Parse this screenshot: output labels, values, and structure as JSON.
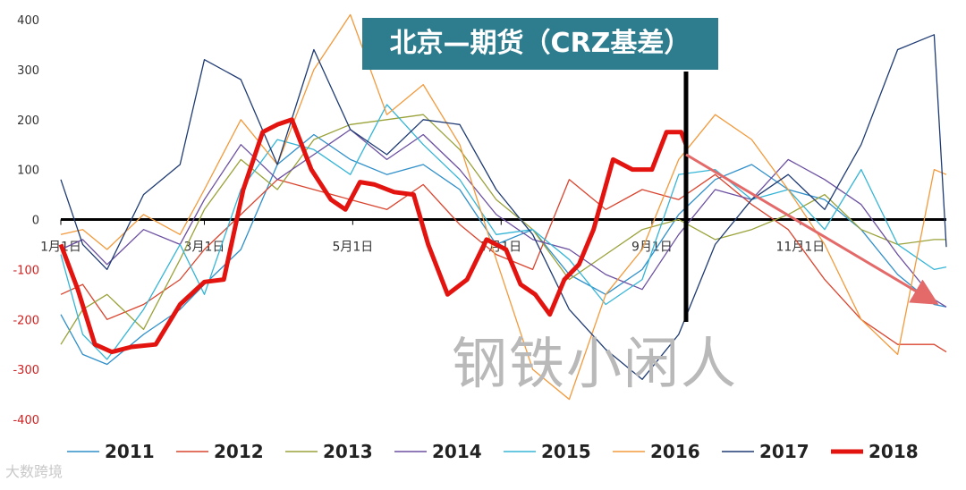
{
  "title": "北京—期货（CRZ基差）",
  "watermark": "钢铁小闲人",
  "source": "大数跨境",
  "colors": {
    "title_bg": "#2e7d8f",
    "s2011": "#2f8fc9",
    "s2012": "#d9442e",
    "s2013": "#9aa23a",
    "s2014": "#6b4fa0",
    "s2015": "#35b5d6",
    "s2016": "#f29a3c",
    "s2017": "#1f3b73",
    "s2018": "#e3140f",
    "arrow": "#e46a6a",
    "axis": "#000000"
  },
  "chart_data": {
    "type": "line",
    "title": "北京—期货（CRZ基差）",
    "xlabel": "",
    "ylabel": "",
    "ylim": [
      -400,
      400
    ],
    "yticks": [
      400,
      300,
      200,
      100,
      0,
      -100,
      -200,
      -300,
      -400
    ],
    "x_domain": [
      1,
      365
    ],
    "xticks": [
      {
        "label": "1月1日",
        "day": 1
      },
      {
        "label": "3月1日",
        "day": 60
      },
      {
        "label": "5月1日",
        "day": 121
      },
      {
        "label": "7月1日",
        "day": 182
      },
      {
        "label": "9月1日",
        "day": 244
      },
      {
        "label": "11月1日",
        "day": 305
      }
    ],
    "grid": false,
    "legend": "bottom",
    "annotations": {
      "vertical_line_day": 258,
      "arrow_from": [
        258,
        130
      ],
      "arrow_to": [
        360,
        -165
      ]
    },
    "series": [
      {
        "name": "2011",
        "x": [
          1,
          10,
          20,
          35,
          50,
          60,
          75,
          90,
          105,
          120,
          135,
          150,
          165,
          180,
          195,
          210,
          225,
          240,
          255,
          270,
          285,
          300,
          315,
          330,
          345,
          360,
          365
        ],
        "y": [
          -190,
          -270,
          -290,
          -230,
          -180,
          -130,
          -60,
          110,
          170,
          120,
          90,
          110,
          60,
          -50,
          -20,
          -110,
          -150,
          -100,
          10,
          80,
          110,
          60,
          40,
          -20,
          -110,
          -170,
          -175
        ]
      },
      {
        "name": "2012",
        "x": [
          1,
          10,
          20,
          35,
          50,
          60,
          75,
          90,
          105,
          120,
          135,
          150,
          165,
          180,
          195,
          210,
          225,
          240,
          255,
          270,
          285,
          300,
          315,
          330,
          345,
          360,
          365
        ],
        "y": [
          -150,
          -130,
          -200,
          -170,
          -120,
          -60,
          10,
          80,
          60,
          40,
          20,
          70,
          -10,
          -70,
          -100,
          80,
          20,
          60,
          40,
          90,
          30,
          -20,
          -120,
          -200,
          -250,
          -250,
          -265
        ]
      },
      {
        "name": "2013",
        "x": [
          1,
          10,
          20,
          35,
          50,
          60,
          75,
          90,
          105,
          120,
          135,
          150,
          165,
          180,
          195,
          210,
          225,
          240,
          255,
          270,
          285,
          300,
          315,
          330,
          345,
          360,
          365
        ],
        "y": [
          -250,
          -180,
          -150,
          -220,
          -80,
          20,
          120,
          60,
          160,
          190,
          200,
          210,
          140,
          40,
          -20,
          -120,
          -70,
          -20,
          0,
          -40,
          -20,
          10,
          50,
          -20,
          -50,
          -40,
          -40
        ]
      },
      {
        "name": "2014",
        "x": [
          1,
          10,
          20,
          35,
          50,
          60,
          75,
          90,
          105,
          120,
          135,
          150,
          165,
          180,
          195,
          210,
          225,
          240,
          255,
          270,
          285,
          300,
          315,
          330,
          345,
          360,
          365
        ],
        "y": [
          -60,
          -40,
          -90,
          -20,
          -50,
          40,
          150,
          80,
          130,
          180,
          120,
          170,
          100,
          10,
          -40,
          -60,
          -110,
          -140,
          -30,
          60,
          40,
          120,
          80,
          30,
          -70,
          -160,
          -175
        ]
      },
      {
        "name": "2015",
        "x": [
          1,
          10,
          20,
          35,
          50,
          60,
          75,
          90,
          105,
          120,
          135,
          150,
          165,
          180,
          195,
          210,
          225,
          240,
          255,
          270,
          285,
          300,
          315,
          330,
          345,
          360,
          365
        ],
        "y": [
          -70,
          -230,
          -280,
          -180,
          -50,
          -150,
          60,
          160,
          140,
          90,
          230,
          150,
          80,
          -30,
          -20,
          -80,
          -170,
          -120,
          90,
          100,
          40,
          60,
          -20,
          100,
          -50,
          -100,
          -95
        ]
      },
      {
        "name": "2016",
        "x": [
          1,
          10,
          20,
          35,
          50,
          60,
          75,
          90,
          105,
          120,
          135,
          150,
          165,
          180,
          195,
          210,
          225,
          240,
          255,
          270,
          285,
          300,
          315,
          330,
          345,
          360,
          365
        ],
        "y": [
          -30,
          -20,
          -60,
          10,
          -30,
          60,
          200,
          110,
          300,
          410,
          210,
          270,
          150,
          -80,
          -300,
          -360,
          -150,
          -60,
          120,
          210,
          160,
          60,
          -50,
          -200,
          -270,
          100,
          90
        ]
      },
      {
        "name": "2017",
        "x": [
          1,
          10,
          20,
          35,
          50,
          60,
          75,
          90,
          105,
          120,
          135,
          150,
          165,
          180,
          195,
          210,
          225,
          240,
          255,
          270,
          285,
          300,
          315,
          330,
          345,
          360,
          365
        ],
        "y": [
          80,
          -50,
          -100,
          50,
          110,
          320,
          280,
          110,
          340,
          180,
          130,
          200,
          190,
          60,
          -30,
          -180,
          -260,
          -320,
          -230,
          -50,
          40,
          90,
          20,
          150,
          340,
          370,
          -55
        ]
      },
      {
        "name": "2018",
        "x": [
          1,
          8,
          15,
          22,
          30,
          40,
          50,
          60,
          68,
          76,
          84,
          90,
          96,
          104,
          112,
          118,
          124,
          130,
          138,
          146,
          152,
          160,
          168,
          176,
          184,
          190,
          196,
          202,
          208,
          214,
          220,
          228,
          236,
          244,
          250,
          256,
          258
        ],
        "y": [
          -50,
          -140,
          -250,
          -265,
          -255,
          -250,
          -170,
          -125,
          -120,
          60,
          175,
          190,
          200,
          100,
          40,
          20,
          75,
          70,
          55,
          50,
          -50,
          -150,
          -120,
          -40,
          -60,
          -130,
          -150,
          -190,
          -120,
          -90,
          -20,
          120,
          100,
          100,
          175,
          175,
          150
        ]
      }
    ]
  }
}
